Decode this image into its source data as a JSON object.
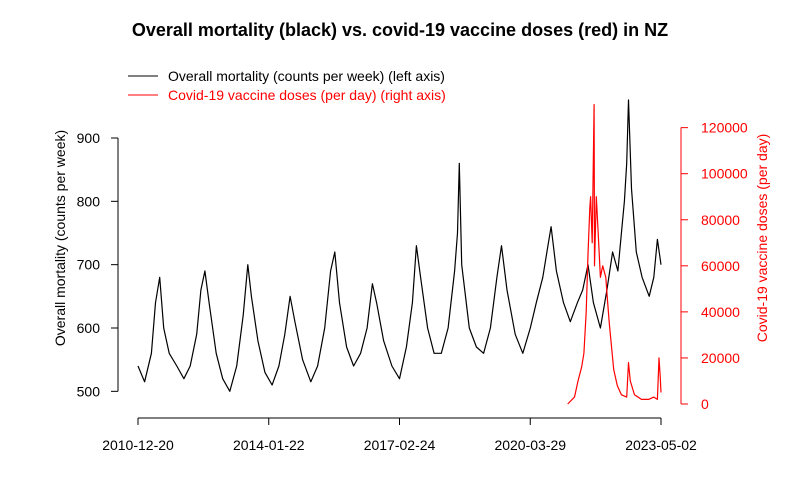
{
  "chart_data": {
    "type": "line",
    "title": "Overall mortality (black) vs. covid-19 vaccine doses (red) in NZ",
    "xlabel": "",
    "ylabel_left": "Overall mortality (counts per week)",
    "ylabel_right": "Covid-19 vaccine doses (per day)",
    "x_ticks": [
      "2010-12-20",
      "2014-01-22",
      "2017-02-24",
      "2020-03-29",
      "2023-05-02"
    ],
    "xlim": [
      "2010-12-20",
      "2023-05-02"
    ],
    "y_left_ticks": [
      500,
      600,
      700,
      800,
      900
    ],
    "y_left_lim": [
      480,
      960
    ],
    "y_right_ticks": [
      0,
      20000,
      40000,
      60000,
      80000,
      100000,
      120000
    ],
    "y_right_lim": [
      0,
      132000
    ],
    "legend_position": "top-left",
    "legend": [
      {
        "label": "Overall mortality (counts per week) (left axis)",
        "color": "#000000"
      },
      {
        "label": "Covid-19 vaccine doses (per day) (right axis)",
        "color": "#ff0000"
      }
    ],
    "series": [
      {
        "name": "Overall mortality (counts per week) (left axis)",
        "axis": "left",
        "color": "#000000",
        "points": [
          [
            "2010-12-20",
            540
          ],
          [
            "2011-02-15",
            515
          ],
          [
            "2011-04-15",
            560
          ],
          [
            "2011-05-20",
            640
          ],
          [
            "2011-06-25",
            680
          ],
          [
            "2011-07-30",
            600
          ],
          [
            "2011-09-15",
            560
          ],
          [
            "2011-11-20",
            540
          ],
          [
            "2012-01-20",
            520
          ],
          [
            "2012-03-15",
            540
          ],
          [
            "2012-05-10",
            590
          ],
          [
            "2012-06-15",
            660
          ],
          [
            "2012-07-20",
            690
          ],
          [
            "2012-08-25",
            640
          ],
          [
            "2012-10-25",
            560
          ],
          [
            "2012-12-20",
            520
          ],
          [
            "2013-02-20",
            500
          ],
          [
            "2013-04-20",
            540
          ],
          [
            "2013-06-15",
            620
          ],
          [
            "2013-07-25",
            700
          ],
          [
            "2013-08-25",
            650
          ],
          [
            "2013-10-20",
            580
          ],
          [
            "2013-12-20",
            530
          ],
          [
            "2014-02-20",
            510
          ],
          [
            "2014-04-20",
            540
          ],
          [
            "2014-06-10",
            590
          ],
          [
            "2014-07-25",
            650
          ],
          [
            "2014-09-05",
            610
          ],
          [
            "2014-11-10",
            550
          ],
          [
            "2015-01-20",
            515
          ],
          [
            "2015-03-20",
            540
          ],
          [
            "2015-05-20",
            600
          ],
          [
            "2015-07-10",
            690
          ],
          [
            "2015-08-15",
            720
          ],
          [
            "2015-09-25",
            640
          ],
          [
            "2015-11-25",
            570
          ],
          [
            "2016-01-25",
            540
          ],
          [
            "2016-03-25",
            560
          ],
          [
            "2016-05-20",
            600
          ],
          [
            "2016-07-05",
            670
          ],
          [
            "2016-08-10",
            640
          ],
          [
            "2016-10-10",
            580
          ],
          [
            "2016-12-20",
            540
          ],
          [
            "2017-02-24",
            520
          ],
          [
            "2017-04-25",
            570
          ],
          [
            "2017-06-15",
            640
          ],
          [
            "2017-07-20",
            730
          ],
          [
            "2017-08-25",
            680
          ],
          [
            "2017-10-25",
            600
          ],
          [
            "2017-12-20",
            560
          ],
          [
            "2018-02-20",
            560
          ],
          [
            "2018-04-20",
            600
          ],
          [
            "2018-06-15",
            690
          ],
          [
            "2018-07-10",
            750
          ],
          [
            "2018-07-25",
            860
          ],
          [
            "2018-08-15",
            700
          ],
          [
            "2018-10-20",
            600
          ],
          [
            "2018-12-20",
            570
          ],
          [
            "2019-02-20",
            560
          ],
          [
            "2019-04-20",
            600
          ],
          [
            "2019-06-15",
            680
          ],
          [
            "2019-07-25",
            730
          ],
          [
            "2019-09-10",
            660
          ],
          [
            "2019-11-20",
            590
          ],
          [
            "2020-01-25",
            560
          ],
          [
            "2020-03-29",
            600
          ],
          [
            "2020-05-20",
            640
          ],
          [
            "2020-07-15",
            680
          ],
          [
            "2020-08-20",
            720
          ],
          [
            "2020-09-25",
            760
          ],
          [
            "2020-11-10",
            690
          ],
          [
            "2021-01-10",
            640
          ],
          [
            "2021-03-10",
            610
          ],
          [
            "2021-05-10",
            640
          ],
          [
            "2021-06-25",
            660
          ],
          [
            "2021-08-10",
            700
          ],
          [
            "2021-09-25",
            640
          ],
          [
            "2021-11-25",
            600
          ],
          [
            "2022-01-20",
            660
          ],
          [
            "2022-03-10",
            720
          ],
          [
            "2022-04-25",
            690
          ],
          [
            "2022-05-30",
            760
          ],
          [
            "2022-06-20",
            800
          ],
          [
            "2022-07-10",
            860
          ],
          [
            "2022-07-25",
            960
          ],
          [
            "2022-08-20",
            820
          ],
          [
            "2022-10-01",
            720
          ],
          [
            "2022-11-20",
            680
          ],
          [
            "2023-01-20",
            650
          ],
          [
            "2023-03-01",
            680
          ],
          [
            "2023-04-01",
            740
          ],
          [
            "2023-05-02",
            700
          ]
        ]
      },
      {
        "name": "Covid-19 vaccine doses (per day) (right axis)",
        "axis": "right",
        "color": "#ff0000",
        "points": [
          [
            "2021-02-15",
            0
          ],
          [
            "2021-04-15",
            3000
          ],
          [
            "2021-05-15",
            10000
          ],
          [
            "2021-06-15",
            16000
          ],
          [
            "2021-07-05",
            22000
          ],
          [
            "2021-07-25",
            40000
          ],
          [
            "2021-08-10",
            65000
          ],
          [
            "2021-08-25",
            85000
          ],
          [
            "2021-09-01",
            90000
          ],
          [
            "2021-09-15",
            70000
          ],
          [
            "2021-10-01",
            130000
          ],
          [
            "2021-10-05",
            60000
          ],
          [
            "2021-10-20",
            90000
          ],
          [
            "2021-11-05",
            75000
          ],
          [
            "2021-11-25",
            55000
          ],
          [
            "2021-12-15",
            60000
          ],
          [
            "2022-01-10",
            55000
          ],
          [
            "2022-01-25",
            45000
          ],
          [
            "2022-02-10",
            35000
          ],
          [
            "2022-03-01",
            25000
          ],
          [
            "2022-03-20",
            15000
          ],
          [
            "2022-04-20",
            8000
          ],
          [
            "2022-05-25",
            4000
          ],
          [
            "2022-07-10",
            3000
          ],
          [
            "2022-07-25",
            18000
          ],
          [
            "2022-08-10",
            10000
          ],
          [
            "2022-09-15",
            4000
          ],
          [
            "2022-11-15",
            2000
          ],
          [
            "2023-01-15",
            2000
          ],
          [
            "2023-03-01",
            3000
          ],
          [
            "2023-04-01",
            2000
          ],
          [
            "2023-04-15",
            20000
          ],
          [
            "2023-04-25",
            12000
          ],
          [
            "2023-05-02",
            5000
          ]
        ]
      }
    ]
  }
}
